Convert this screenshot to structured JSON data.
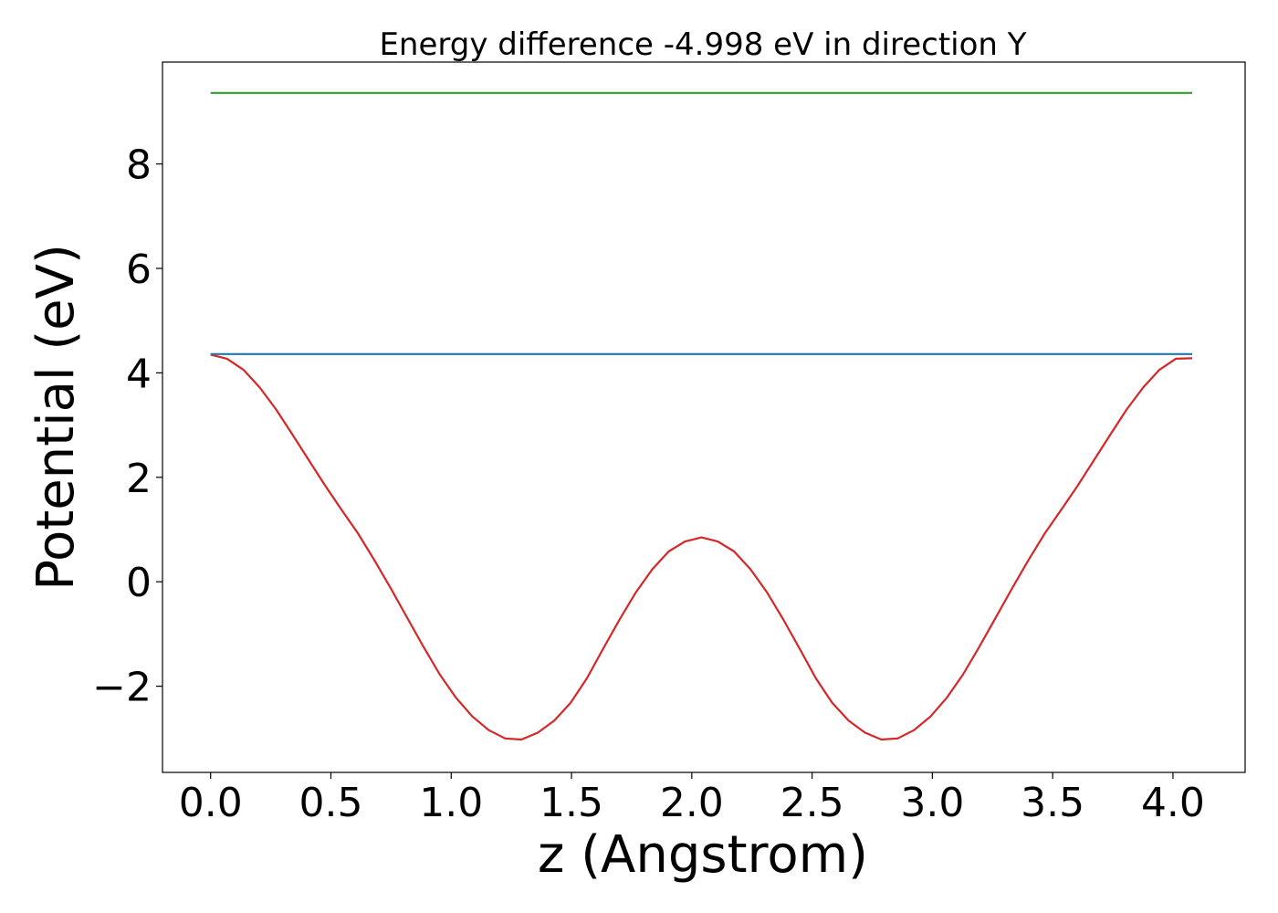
{
  "chart_data": {
    "type": "line",
    "title": "Energy difference -4.998 eV in direction Y",
    "xlabel": "z (Angstrom)",
    "ylabel": "Potential (eV)",
    "xlim": [
      -0.2,
      4.3
    ],
    "ylim": [
      -3.65,
      9.95
    ],
    "xticks": [
      0.0,
      0.5,
      1.0,
      1.5,
      2.0,
      2.5,
      3.0,
      3.5,
      4.0
    ],
    "xtick_labels": [
      "0.0",
      "0.5",
      "1.0",
      "1.5",
      "2.0",
      "2.5",
      "3.0",
      "3.5",
      "4.0"
    ],
    "yticks": [
      -2,
      0,
      2,
      4,
      6,
      8
    ],
    "ytick_labels": [
      "−2",
      "0",
      "2",
      "4",
      "6",
      "8"
    ],
    "grid": false,
    "legend": false,
    "series": [
      {
        "color": "#d62728",
        "x": [
          0.0,
          0.068,
          0.136,
          0.204,
          0.272,
          0.34,
          0.408,
          0.476,
          0.544,
          0.612,
          0.68,
          0.748,
          0.816,
          0.884,
          0.952,
          1.02,
          1.088,
          1.156,
          1.224,
          1.292,
          1.36,
          1.428,
          1.496,
          1.564,
          1.632,
          1.7,
          1.768,
          1.836,
          1.904,
          1.972,
          2.04,
          2.108,
          2.176,
          2.244,
          2.312,
          2.38,
          2.448,
          2.516,
          2.584,
          2.652,
          2.72,
          2.788,
          2.856,
          2.924,
          2.992,
          3.06,
          3.128,
          3.196,
          3.264,
          3.332,
          3.4,
          3.468,
          3.536,
          3.604,
          3.672,
          3.74,
          3.808,
          3.876,
          3.944,
          4.012,
          4.08
        ],
        "y": [
          4.35,
          4.27,
          4.06,
          3.72,
          3.3,
          2.82,
          2.33,
          1.84,
          1.38,
          0.93,
          0.42,
          -0.12,
          -0.68,
          -1.24,
          -1.77,
          -2.22,
          -2.58,
          -2.84,
          -3.0,
          -3.02,
          -2.89,
          -2.66,
          -2.32,
          -1.85,
          -1.28,
          -0.72,
          -0.2,
          0.24,
          0.58,
          0.77,
          0.85,
          0.77,
          0.58,
          0.24,
          -0.2,
          -0.72,
          -1.28,
          -1.85,
          -2.32,
          -2.66,
          -2.89,
          -3.02,
          -3.0,
          -2.84,
          -2.58,
          -2.22,
          -1.77,
          -1.24,
          -0.68,
          -0.12,
          0.42,
          0.93,
          1.38,
          1.84,
          2.33,
          2.82,
          3.3,
          3.72,
          4.06,
          4.27,
          4.28
        ]
      },
      {
        "color": "#1f77b4",
        "x": [
          0.0,
          4.08
        ],
        "y": [
          4.36,
          4.36
        ]
      },
      {
        "color": "#2ca02c",
        "x": [
          0.0,
          4.08
        ],
        "y": [
          9.36,
          9.36
        ]
      }
    ]
  }
}
